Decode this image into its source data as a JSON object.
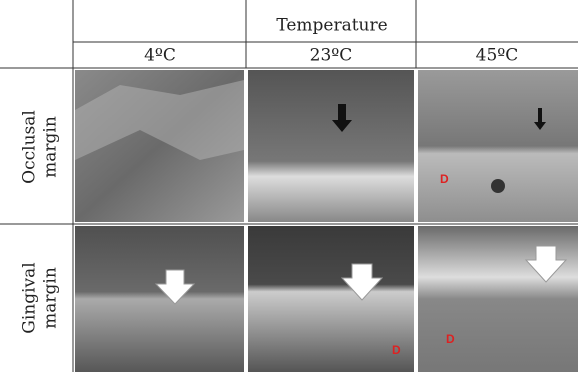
{
  "header": {
    "title": "Temperature",
    "columns": [
      "4ºC",
      "23ºC",
      "45ºC"
    ]
  },
  "rows": [
    {
      "label": [
        "Occlusal",
        "margin"
      ],
      "cell_labels": [
        "D"
      ]
    },
    {
      "label": [
        "Gingival",
        "margin"
      ],
      "cell_labels": [
        "D",
        "D"
      ]
    }
  ]
}
